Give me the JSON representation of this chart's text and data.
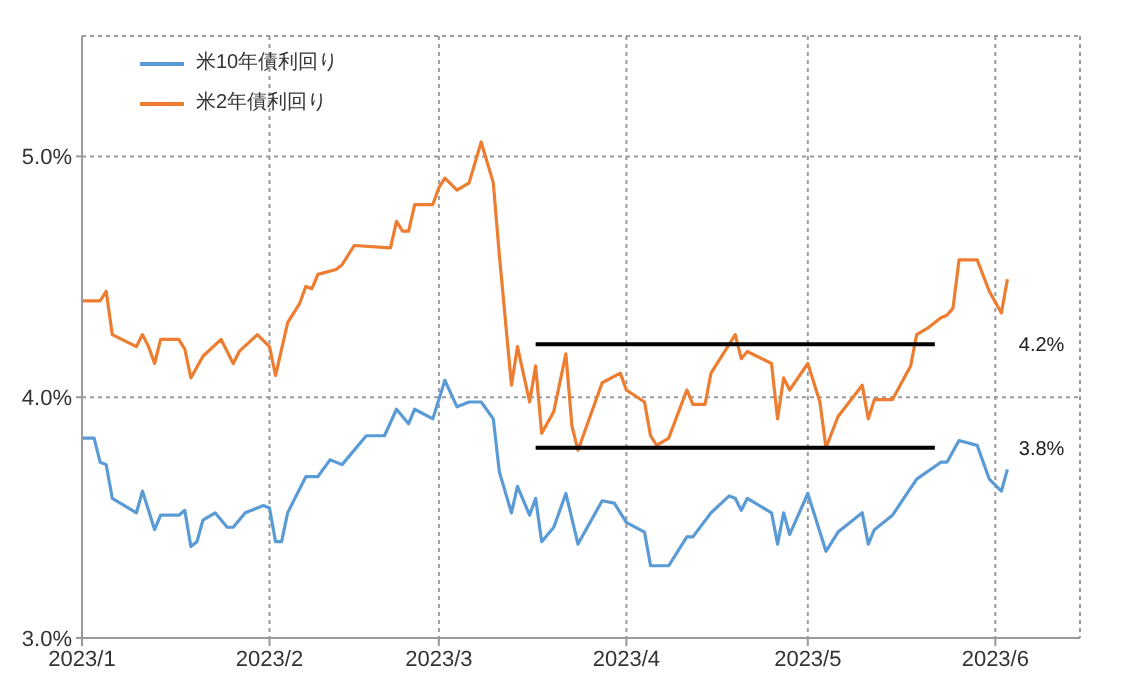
{
  "chart_data": {
    "type": "line",
    "xlim": [
      "2023-01-01",
      "2023-06-15"
    ],
    "xticks": [
      {
        "value": "2023-01-01",
        "label": "2023/1"
      },
      {
        "value": "2023-02-01",
        "label": "2023/2"
      },
      {
        "value": "2023-03-01",
        "label": "2023/3"
      },
      {
        "value": "2023-04-01",
        "label": "2023/4"
      },
      {
        "value": "2023-05-01",
        "label": "2023/5"
      },
      {
        "value": "2023-06-01",
        "label": "2023/6"
      }
    ],
    "ylim": [
      3,
      5.5
    ],
    "yticks": [
      {
        "value": 3,
        "label": "3.0%"
      },
      {
        "value": 4,
        "label": "4.0%"
      },
      {
        "value": 5,
        "label": "5.0%"
      }
    ],
    "grid": true,
    "legend": "top left",
    "marker": "none",
    "line_style": "solid",
    "series": [
      {
        "name": "米10年債利回り",
        "color": "#5b9bd5",
        "x": [
          "2023-01-01",
          "2023-01-03",
          "2023-01-04",
          "2023-01-05",
          "2023-01-06",
          "2023-01-10",
          "2023-01-11",
          "2023-01-13",
          "2023-01-14",
          "2023-01-17",
          "2023-01-18",
          "2023-01-19",
          "2023-01-20",
          "2023-01-21",
          "2023-01-23",
          "2023-01-25",
          "2023-01-26",
          "2023-01-28",
          "2023-01-31",
          "2023-02-01",
          "2023-02-02",
          "2023-02-03",
          "2023-02-04",
          "2023-02-07",
          "2023-02-09",
          "2023-02-11",
          "2023-02-13",
          "2023-02-17",
          "2023-02-20",
          "2023-02-22",
          "2023-02-24",
          "2023-02-25",
          "2023-02-28",
          "2023-03-02",
          "2023-03-04",
          "2023-03-06",
          "2023-03-08",
          "2023-03-10",
          "2023-03-11",
          "2023-03-13",
          "2023-03-14",
          "2023-03-16",
          "2023-03-17",
          "2023-03-18",
          "2023-03-20",
          "2023-03-22",
          "2023-03-24",
          "2023-03-28",
          "2023-03-30",
          "2023-04-01",
          "2023-04-04",
          "2023-04-05",
          "2023-04-08",
          "2023-04-11",
          "2023-04-12",
          "2023-04-15",
          "2023-04-18",
          "2023-04-19",
          "2023-04-20",
          "2023-04-21",
          "2023-04-25",
          "2023-04-26",
          "2023-04-27",
          "2023-04-28",
          "2023-05-01",
          "2023-05-03",
          "2023-05-04",
          "2023-05-06",
          "2023-05-10",
          "2023-05-11",
          "2023-05-12",
          "2023-05-15",
          "2023-05-19",
          "2023-05-23",
          "2023-05-24",
          "2023-05-26",
          "2023-05-29",
          "2023-05-31",
          "2023-06-02",
          "2023-06-03"
        ],
        "values": [
          3.83,
          3.83,
          3.73,
          3.72,
          3.58,
          3.52,
          3.61,
          3.45,
          3.51,
          3.51,
          3.53,
          3.38,
          3.4,
          3.49,
          3.52,
          3.46,
          3.46,
          3.52,
          3.55,
          3.54,
          3.4,
          3.4,
          3.52,
          3.67,
          3.67,
          3.74,
          3.72,
          3.84,
          3.84,
          3.95,
          3.89,
          3.95,
          3.91,
          4.07,
          3.96,
          3.98,
          3.98,
          3.91,
          3.69,
          3.52,
          3.63,
          3.51,
          3.58,
          3.4,
          3.46,
          3.6,
          3.39,
          3.57,
          3.56,
          3.48,
          3.44,
          3.3,
          3.3,
          3.42,
          3.42,
          3.52,
          3.59,
          3.58,
          3.53,
          3.58,
          3.52,
          3.39,
          3.52,
          3.43,
          3.6,
          3.44,
          3.36,
          3.44,
          3.52,
          3.39,
          3.45,
          3.51,
          3.66,
          3.73,
          3.73,
          3.82,
          3.8,
          3.66,
          3.61,
          3.7
        ]
      },
      {
        "name": "米2年債利回り",
        "color": "#ed7d31",
        "x": [
          "2023-01-01",
          "2023-01-04",
          "2023-01-05",
          "2023-01-06",
          "2023-01-10",
          "2023-01-11",
          "2023-01-12",
          "2023-01-13",
          "2023-01-14",
          "2023-01-17",
          "2023-01-18",
          "2023-01-19",
          "2023-01-21",
          "2023-01-24",
          "2023-01-26",
          "2023-01-27",
          "2023-01-30",
          "2023-02-01",
          "2023-02-02",
          "2023-02-04",
          "2023-02-06",
          "2023-02-07",
          "2023-02-08",
          "2023-02-09",
          "2023-02-12",
          "2023-02-13",
          "2023-02-15",
          "2023-02-21",
          "2023-02-22",
          "2023-02-23",
          "2023-02-24",
          "2023-02-25",
          "2023-02-28",
          "2023-03-01",
          "2023-03-02",
          "2023-03-04",
          "2023-03-06",
          "2023-03-08",
          "2023-03-10",
          "2023-03-11",
          "2023-03-13",
          "2023-03-14",
          "2023-03-16",
          "2023-03-17",
          "2023-03-18",
          "2023-03-20",
          "2023-03-22",
          "2023-03-23",
          "2023-03-24",
          "2023-03-28",
          "2023-03-31",
          "2023-04-01",
          "2023-04-04",
          "2023-04-05",
          "2023-04-06",
          "2023-04-08",
          "2023-04-11",
          "2023-04-12",
          "2023-04-14",
          "2023-04-15",
          "2023-04-19",
          "2023-04-20",
          "2023-04-21",
          "2023-04-25",
          "2023-04-26",
          "2023-04-27",
          "2023-04-28",
          "2023-05-01",
          "2023-05-03",
          "2023-05-04",
          "2023-05-06",
          "2023-05-10",
          "2023-05-11",
          "2023-05-12",
          "2023-05-15",
          "2023-05-18",
          "2023-05-19",
          "2023-05-21",
          "2023-05-23",
          "2023-05-24",
          "2023-05-25",
          "2023-05-26",
          "2023-05-29",
          "2023-05-31",
          "2023-06-02",
          "2023-06-03"
        ],
        "values": [
          4.4,
          4.4,
          4.44,
          4.26,
          4.21,
          4.26,
          4.21,
          4.14,
          4.24,
          4.24,
          4.2,
          4.08,
          4.17,
          4.24,
          4.14,
          4.19,
          4.26,
          4.21,
          4.09,
          4.31,
          4.39,
          4.46,
          4.45,
          4.51,
          4.53,
          4.55,
          4.63,
          4.62,
          4.73,
          4.69,
          4.69,
          4.8,
          4.8,
          4.87,
          4.91,
          4.86,
          4.89,
          5.06,
          4.89,
          4.59,
          4.05,
          4.21,
          3.98,
          4.13,
          3.85,
          3.94,
          4.18,
          3.88,
          3.78,
          4.06,
          4.1,
          4.03,
          3.98,
          3.84,
          3.8,
          3.83,
          4.03,
          3.97,
          3.97,
          4.1,
          4.26,
          4.16,
          4.19,
          4.14,
          3.91,
          4.08,
          4.03,
          4.14,
          3.98,
          3.79,
          3.92,
          4.05,
          3.91,
          3.99,
          3.99,
          4.13,
          4.26,
          4.29,
          4.33,
          4.34,
          4.37,
          4.57,
          4.57,
          4.44,
          4.35,
          4.49
        ]
      },
      {
        "type": "line",
        "color": "#000000",
        "x": [
          "2023-03-17",
          "2023-05-22"
        ],
        "values": [
          4.22,
          4.22
        ]
      },
      {
        "type": "line",
        "color": "#000000",
        "x": [
          "2023-03-17",
          "2023-05-22"
        ],
        "values": [
          3.79,
          3.79
        ]
      }
    ],
    "annotations": [
      "4.2%",
      "3.8%"
    ]
  }
}
